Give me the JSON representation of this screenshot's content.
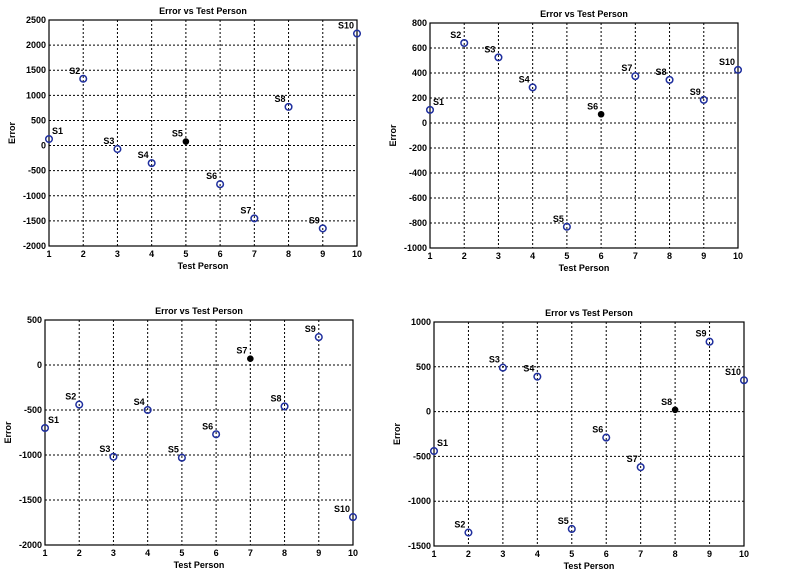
{
  "chart_data": [
    {
      "type": "scatter",
      "title": "Error vs Test Person",
      "xlabel": "Test Person",
      "ylabel": "Error",
      "xlim": [
        1,
        10
      ],
      "ylim": [
        -2000,
        2500
      ],
      "xticks": [
        1,
        2,
        3,
        4,
        5,
        6,
        7,
        8,
        9,
        10
      ],
      "yticks": [
        -2000,
        -1500,
        -1000,
        -500,
        0,
        500,
        1000,
        1500,
        2000,
        2500
      ],
      "grid": true,
      "points": [
        {
          "label": "S1",
          "x": 1,
          "y": 130,
          "highlight": false
        },
        {
          "label": "S2",
          "x": 2,
          "y": 1330,
          "highlight": false
        },
        {
          "label": "S3",
          "x": 3,
          "y": -70,
          "highlight": false
        },
        {
          "label": "S4",
          "x": 4,
          "y": -350,
          "highlight": false
        },
        {
          "label": "S5",
          "x": 5,
          "y": 80,
          "highlight": true
        },
        {
          "label": "S6",
          "x": 6,
          "y": -770,
          "highlight": false
        },
        {
          "label": "S7",
          "x": 7,
          "y": -1450,
          "highlight": false
        },
        {
          "label": "S8",
          "x": 8,
          "y": 770,
          "highlight": false
        },
        {
          "label": "S9",
          "x": 9,
          "y": -1650,
          "highlight": false
        },
        {
          "label": "S10",
          "x": 10,
          "y": 2230,
          "highlight": false
        }
      ]
    },
    {
      "type": "scatter",
      "title": "Error vs Test Person",
      "xlabel": "Test Person",
      "ylabel": "Error",
      "xlim": [
        1,
        10
      ],
      "ylim": [
        -1000,
        800
      ],
      "xticks": [
        1,
        2,
        3,
        4,
        5,
        6,
        7,
        8,
        9,
        10
      ],
      "yticks": [
        -1000,
        -800,
        -600,
        -400,
        -200,
        0,
        200,
        400,
        600,
        800
      ],
      "grid": true,
      "points": [
        {
          "label": "S1",
          "x": 1,
          "y": 105,
          "highlight": false
        },
        {
          "label": "S2",
          "x": 2,
          "y": 640,
          "highlight": false
        },
        {
          "label": "S3",
          "x": 3,
          "y": 525,
          "highlight": false
        },
        {
          "label": "S4",
          "x": 4,
          "y": 285,
          "highlight": false
        },
        {
          "label": "S5",
          "x": 5,
          "y": -830,
          "highlight": false
        },
        {
          "label": "S6",
          "x": 6,
          "y": 70,
          "highlight": true
        },
        {
          "label": "S7",
          "x": 7,
          "y": 375,
          "highlight": false
        },
        {
          "label": "S8",
          "x": 8,
          "y": 345,
          "highlight": false
        },
        {
          "label": "S9",
          "x": 9,
          "y": 185,
          "highlight": false
        },
        {
          "label": "S10",
          "x": 10,
          "y": 425,
          "highlight": false
        }
      ]
    },
    {
      "type": "scatter",
      "title": "Error vs Test Person",
      "xlabel": "Test Person",
      "ylabel": "Error",
      "xlim": [
        1,
        10
      ],
      "ylim": [
        -2000,
        500
      ],
      "xticks": [
        1,
        2,
        3,
        4,
        5,
        6,
        7,
        8,
        9,
        10
      ],
      "yticks": [
        -2000,
        -1500,
        -1000,
        -500,
        0,
        500
      ],
      "grid": true,
      "points": [
        {
          "label": "S1",
          "x": 1,
          "y": -700,
          "highlight": false
        },
        {
          "label": "S2",
          "x": 2,
          "y": -440,
          "highlight": false
        },
        {
          "label": "S3",
          "x": 3,
          "y": -1020,
          "highlight": false
        },
        {
          "label": "S4",
          "x": 4,
          "y": -500,
          "highlight": false
        },
        {
          "label": "S5",
          "x": 5,
          "y": -1030,
          "highlight": false
        },
        {
          "label": "S6",
          "x": 6,
          "y": -770,
          "highlight": false
        },
        {
          "label": "S7",
          "x": 7,
          "y": 70,
          "highlight": true
        },
        {
          "label": "S8",
          "x": 8,
          "y": -460,
          "highlight": false
        },
        {
          "label": "S9",
          "x": 9,
          "y": 310,
          "highlight": false
        },
        {
          "label": "S10",
          "x": 10,
          "y": -1690,
          "highlight": false
        }
      ]
    },
    {
      "type": "scatter",
      "title": "Error vs Test Person",
      "xlabel": "Test Person",
      "ylabel": "Error",
      "xlim": [
        1,
        10
      ],
      "ylim": [
        -1500,
        1000
      ],
      "xticks": [
        1,
        2,
        3,
        4,
        5,
        6,
        7,
        8,
        9,
        10
      ],
      "yticks": [
        -1500,
        -1000,
        -500,
        0,
        500,
        1000
      ],
      "grid": true,
      "points": [
        {
          "label": "S1",
          "x": 1,
          "y": -440,
          "highlight": false
        },
        {
          "label": "S2",
          "x": 2,
          "y": -1350,
          "highlight": false
        },
        {
          "label": "S3",
          "x": 3,
          "y": 490,
          "highlight": false
        },
        {
          "label": "S4",
          "x": 4,
          "y": 390,
          "highlight": false
        },
        {
          "label": "S5",
          "x": 5,
          "y": -1310,
          "highlight": false
        },
        {
          "label": "S6",
          "x": 6,
          "y": -290,
          "highlight": false
        },
        {
          "label": "S7",
          "x": 7,
          "y": -620,
          "highlight": false
        },
        {
          "label": "S8",
          "x": 8,
          "y": 20,
          "highlight": true
        },
        {
          "label": "S9",
          "x": 9,
          "y": 780,
          "highlight": false
        },
        {
          "label": "S10",
          "x": 10,
          "y": 350,
          "highlight": false
        }
      ]
    }
  ],
  "colors": {
    "marker": "#1f2f9e",
    "highlight": "#000000",
    "grid": "#000000"
  }
}
